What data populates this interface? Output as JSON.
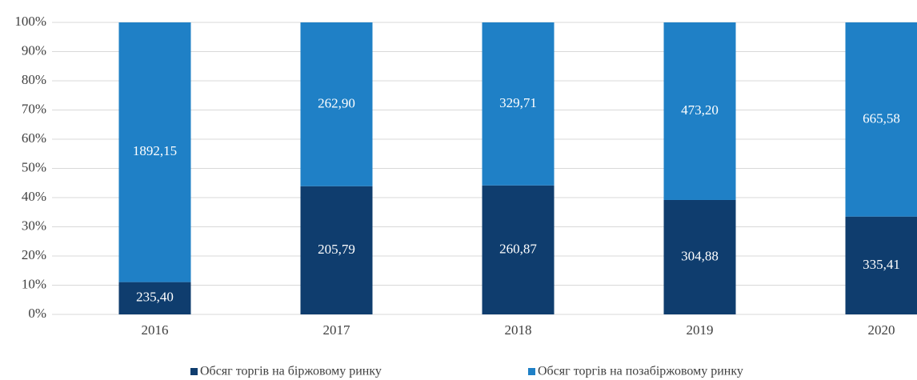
{
  "chart_data": {
    "type": "bar",
    "stacked": "percent",
    "categories": [
      "2016",
      "2017",
      "2018",
      "2019",
      "2020"
    ],
    "series": [
      {
        "name": "Обсяг торгів на біржовому ринку",
        "color": "#0f3d6e",
        "values": [
          235.4,
          205.79,
          260.87,
          304.88,
          335.41
        ],
        "value_labels": [
          "235,40",
          "205,79",
          "260,87",
          "304,88",
          "335,41"
        ]
      },
      {
        "name": "Обсяг торгів на позабіржовому ринку",
        "color": "#1f80c6",
        "values": [
          1892.15,
          262.9,
          329.71,
          473.2,
          665.58
        ],
        "value_labels": [
          "1892,15",
          "262,90",
          "329,71",
          "473,20",
          "665,58"
        ]
      }
    ],
    "ylim": [
      0,
      100
    ],
    "yticks": [
      {
        "value": 0,
        "label": "0%"
      },
      {
        "value": 10,
        "label": "10%"
      },
      {
        "value": 20,
        "label": "20%"
      },
      {
        "value": 30,
        "label": "30%"
      },
      {
        "value": 40,
        "label": "40%"
      },
      {
        "value": 50,
        "label": "50%"
      },
      {
        "value": 60,
        "label": "60%"
      },
      {
        "value": 70,
        "label": "70%"
      },
      {
        "value": 80,
        "label": "80%"
      },
      {
        "value": 90,
        "label": "90%"
      },
      {
        "value": 100,
        "label": "100%"
      }
    ],
    "grid": true,
    "legend": "bottom"
  }
}
